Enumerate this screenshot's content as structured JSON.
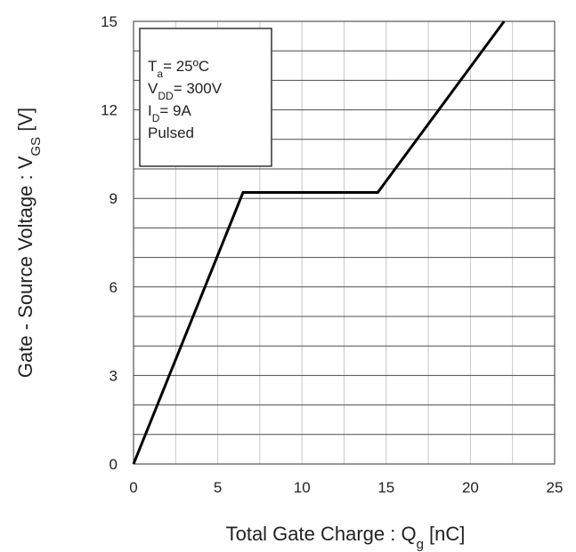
{
  "chart_data": {
    "type": "line",
    "xlabel": "Total Gate Charge : Q",
    "xlabel_sub": "g",
    "xlabel_unit": " [nC]",
    "ylabel": "Gate - Source Voltage : V",
    "ylabel_sub": "GS",
    "ylabel_unit": " [V]",
    "xlim": [
      0,
      25
    ],
    "ylim": [
      0,
      15
    ],
    "x_ticks": [
      0,
      5,
      10,
      15,
      20,
      25
    ],
    "y_ticks": [
      0,
      3,
      6,
      9,
      12,
      15
    ],
    "x_tick_labels": [
      "0",
      "5",
      "10",
      "15",
      "20",
      "25"
    ],
    "y_tick_labels": [
      "0",
      "3",
      "6",
      "9",
      "12",
      "15"
    ],
    "x_minor_step": 2.5,
    "y_minor_step": 1,
    "grid": true,
    "series": [
      {
        "x": [
          0,
          6.5,
          14.5,
          22
        ],
        "y": [
          0,
          9.2,
          9.2,
          15
        ]
      }
    ],
    "conditions": [
      {
        "main": "T",
        "sub": "a",
        "rest": "= 25ºC"
      },
      {
        "main": "V",
        "sub": "DD",
        "rest": "= 300V"
      },
      {
        "main": "I",
        "sub": "D",
        "rest": "= 9A"
      },
      {
        "main": "Pulsed",
        "sub": "",
        "rest": ""
      }
    ],
    "legend_position": "top-left",
    "colors": {
      "line": "#000000",
      "grid_major": "#4d4d4d",
      "grid_minor": "#c8c8c8",
      "frame": "#333333"
    }
  }
}
